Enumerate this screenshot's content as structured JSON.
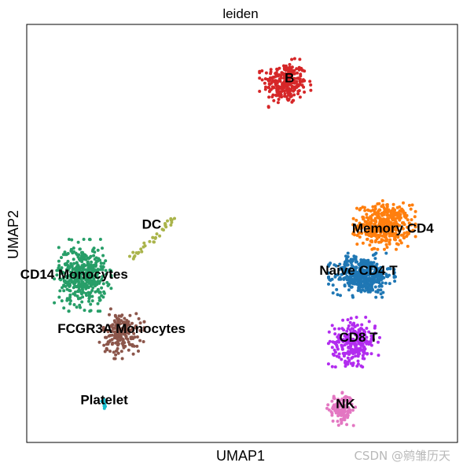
{
  "chart_data": {
    "type": "scatter",
    "title": "leiden",
    "xlabel": "UMAP1",
    "ylabel": "UMAP2",
    "xlim": [
      0,
      100
    ],
    "ylim": [
      0,
      100
    ],
    "grid": false,
    "legend": "on data",
    "clusters": [
      {
        "name": "B",
        "color": "#d62728",
        "center": [
          60,
          86
        ],
        "spread": [
          4.5,
          4.4
        ],
        "n": 260,
        "label_at": [
          61,
          87
        ]
      },
      {
        "name": "Memory CD4",
        "color": "#ff7f0e",
        "center": [
          83,
          52
        ],
        "spread": [
          5.5,
          4.4
        ],
        "n": 420,
        "label_at": [
          85,
          51
        ]
      },
      {
        "name": "Naive CD4 T",
        "color": "#1f77b4",
        "center": [
          78,
          40
        ],
        "spread": [
          6,
          4.0
        ],
        "n": 420,
        "label_at": [
          77,
          41
        ]
      },
      {
        "name": "CD8 T",
        "color": "#b22cef",
        "center": [
          76,
          24
        ],
        "spread": [
          4.5,
          4.5
        ],
        "n": 260,
        "label_at": [
          77,
          25
        ]
      },
      {
        "name": "NK",
        "color": "#e377c2",
        "center": [
          73,
          8
        ],
        "spread": [
          2.5,
          3
        ],
        "n": 130,
        "label_at": [
          74,
          9
        ]
      },
      {
        "name": "CD14 Monocytes",
        "color": "#279e68",
        "center": [
          13,
          40
        ],
        "spread": [
          5,
          6.5
        ],
        "n": 420,
        "label_at": [
          11,
          40
        ]
      },
      {
        "name": "FCGR3A Monocytes",
        "color": "#8c564b",
        "center": [
          22,
          26
        ],
        "spread": [
          4,
          4.5
        ],
        "n": 180,
        "label_at": [
          22,
          27
        ]
      },
      {
        "name": "DC",
        "color": "#aab44b",
        "center": [
          30,
          50
        ],
        "spread": [
          4,
          1.5
        ],
        "n": 35,
        "label_at": [
          29,
          52
        ]
      },
      {
        "name": "Platelet",
        "color": "#17becf",
        "center": [
          18,
          9
        ],
        "spread": [
          0.5,
          1.2
        ],
        "n": 10,
        "label_at": [
          18,
          10
        ]
      }
    ]
  },
  "watermark": "CSDN @鹓雏历天"
}
